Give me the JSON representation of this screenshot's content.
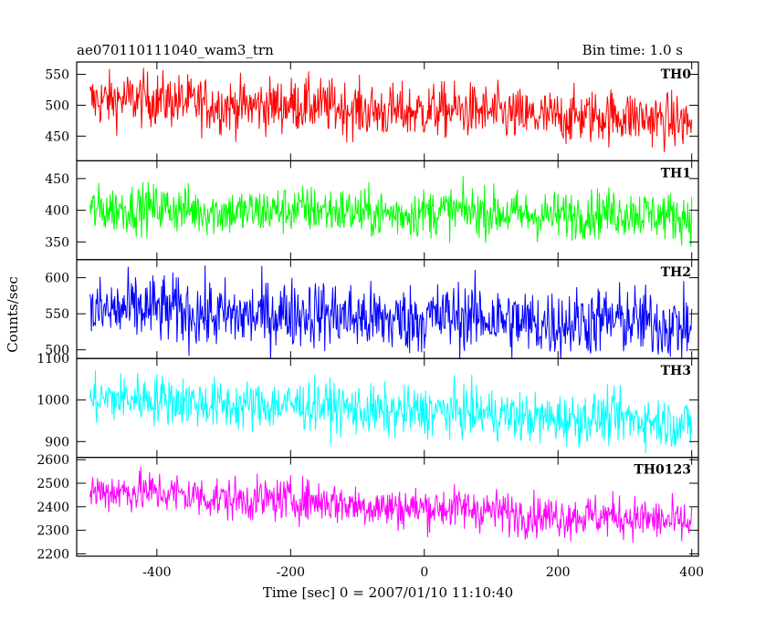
{
  "title_left": "ae070110111040_wam3_trn",
  "title_right": "Bin time: 1.0 s",
  "xlabel": "Time [sec] 0 = 2007/01/10 11:10:40",
  "ylabel": "Counts/sec",
  "chart_data": {
    "type": "line",
    "title": "ae070110111040_wam3_trn",
    "xlabel": "Time [sec] 0 = 2007/01/10 11:10:40",
    "ylabel": "Counts/sec",
    "xlim": [
      -520,
      410
    ],
    "xticks": [
      -400,
      -200,
      0,
      200,
      400
    ],
    "x_start": -500,
    "x_end": 400,
    "bin_time": 1.0,
    "series": [
      {
        "name": "TH0",
        "color": "#ff0000",
        "ylim": [
          410,
          570
        ],
        "yticks": [
          450,
          500,
          550
        ],
        "mean_start": 510,
        "mean_end": 475,
        "noise": 22
      },
      {
        "name": "TH1",
        "color": "#00ff00",
        "ylim": [
          322,
          478
        ],
        "yticks": [
          350,
          400,
          450
        ],
        "mean_start": 402,
        "mean_end": 392,
        "noise": 19
      },
      {
        "name": "TH2",
        "color": "#0000ff",
        "ylim": [
          488,
          625
        ],
        "yticks": [
          500,
          550,
          600
        ],
        "mean_start": 555,
        "mean_end": 535,
        "noise": 24
      },
      {
        "name": "TH3",
        "color": "#00ffff",
        "ylim": [
          862,
          1100
        ],
        "yticks": [
          900,
          1000,
          1100
        ],
        "mean_start": 1005,
        "mean_end": 945,
        "noise": 30
      },
      {
        "name": "TH0123",
        "color": "#ff00ff",
        "ylim": [
          2190,
          2610
        ],
        "yticks": [
          2200,
          2300,
          2400,
          2500,
          2600
        ],
        "mean_start": 2470,
        "mean_end": 2335,
        "noise": 45
      }
    ]
  }
}
